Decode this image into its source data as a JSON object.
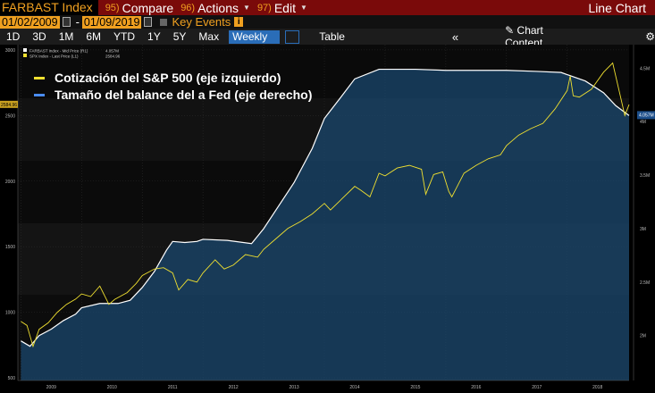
{
  "toolbar": {
    "ticker": "FARBAST Index",
    "menus": [
      {
        "num": "95)",
        "label": "Compare"
      },
      {
        "num": "96)",
        "label": "Actions"
      },
      {
        "num": "97)",
        "label": "Edit"
      }
    ],
    "chart_type": "Line Chart"
  },
  "dates": {
    "start": "01/02/2009",
    "end": "01/09/2019"
  },
  "key_events": "Key Events",
  "periods": [
    "1D",
    "3D",
    "1M",
    "6M",
    "YTD",
    "1Y",
    "5Y",
    "Max"
  ],
  "frequency": "Weekly",
  "table_label": "Table",
  "chart_content_label": "Chart Content",
  "legend_small": [
    {
      "ticker": "FARBAST Index - Mid Price (R1)",
      "value": "4.057M"
    },
    {
      "ticker": "SPX Index - Last Price (L1)",
      "value": "2584.96"
    }
  ],
  "chart_data": {
    "type": "area",
    "series": [
      {
        "name": "Cotización del S&P 500 (eje izquierdo)",
        "color": "#f0e030",
        "axis": "left",
        "x": [
          2009.0,
          2009.1,
          2009.2,
          2009.3,
          2009.45,
          2009.6,
          2009.75,
          2009.9,
          2010.0,
          2010.15,
          2010.3,
          2010.45,
          2010.55,
          2010.75,
          2010.9,
          2011.0,
          2011.2,
          2011.35,
          2011.5,
          2011.6,
          2011.75,
          2011.9,
          2012.0,
          2012.2,
          2012.35,
          2012.5,
          2012.7,
          2012.9,
          2013.0,
          2013.2,
          2013.4,
          2013.6,
          2013.8,
          2014.0,
          2014.1,
          2014.3,
          2014.5,
          2014.6,
          2014.75,
          2014.9,
          2015.0,
          2015.2,
          2015.4,
          2015.6,
          2015.67,
          2015.8,
          2015.95,
          2016.05,
          2016.1,
          2016.3,
          2016.5,
          2016.7,
          2016.9,
          2017.0,
          2017.2,
          2017.4,
          2017.6,
          2017.8,
          2018.0,
          2018.05,
          2018.1,
          2018.2,
          2018.4,
          2018.6,
          2018.75,
          2018.85,
          2018.95,
          2019.02
        ],
        "values": [
          930,
          900,
          740,
          870,
          920,
          1000,
          1060,
          1100,
          1140,
          1120,
          1200,
          1060,
          1100,
          1150,
          1220,
          1280,
          1330,
          1340,
          1300,
          1170,
          1250,
          1230,
          1300,
          1400,
          1330,
          1360,
          1440,
          1420,
          1480,
          1560,
          1640,
          1690,
          1750,
          1830,
          1780,
          1870,
          1960,
          1930,
          1880,
          2060,
          2040,
          2100,
          2120,
          2090,
          1900,
          2050,
          2070,
          1920,
          1880,
          2060,
          2120,
          2170,
          2200,
          2270,
          2350,
          2400,
          2440,
          2550,
          2690,
          2800,
          2650,
          2640,
          2700,
          2830,
          2900,
          2700,
          2500,
          2584
        ]
      },
      {
        "name": "Tamaño del balance de la Fed (eje derecho)",
        "color": "#4a8cf0",
        "axis": "right",
        "x": [
          2009.0,
          2009.15,
          2009.3,
          2009.5,
          2009.7,
          2009.9,
          2010.0,
          2010.3,
          2010.6,
          2010.8,
          2011.0,
          2011.2,
          2011.4,
          2011.5,
          2011.7,
          2011.9,
          2012.0,
          2012.4,
          2012.8,
          2013.0,
          2013.5,
          2013.8,
          2014.0,
          2014.3,
          2014.5,
          2014.9,
          2015.5,
          2016.0,
          2016.5,
          2017.0,
          2017.5,
          2017.9,
          2018.0,
          2018.3,
          2018.6,
          2018.8,
          2019.02
        ],
        "values": [
          1.95,
          1.9,
          2.0,
          2.06,
          2.14,
          2.2,
          2.26,
          2.3,
          2.3,
          2.33,
          2.45,
          2.6,
          2.8,
          2.88,
          2.87,
          2.88,
          2.9,
          2.89,
          2.86,
          3.0,
          3.43,
          3.75,
          4.03,
          4.25,
          4.4,
          4.49,
          4.49,
          4.48,
          4.48,
          4.48,
          4.47,
          4.46,
          4.44,
          4.38,
          4.27,
          4.15,
          4.057
        ]
      }
    ],
    "left_axis": {
      "ticks": [
        500,
        1000,
        1500,
        2000,
        2500,
        3000
      ],
      "range": [
        480,
        3040
      ],
      "last": "2584.96"
    },
    "right_axis": {
      "ticks": [
        "2M",
        "2.5M",
        "3M",
        "3.5M",
        "4M",
        "4.5M"
      ],
      "tick_values": [
        2.0,
        2.5,
        3.0,
        3.5,
        4.0,
        4.5
      ],
      "range": [
        1.58,
        4.72
      ],
      "last": "4.057M"
    },
    "x_axis": {
      "ticks": [
        "2009",
        "2010",
        "2011",
        "2012",
        "2013",
        "2014",
        "2015",
        "2016",
        "2017",
        "2018"
      ],
      "range": [
        2008.95,
        2019.02
      ]
    },
    "legend": [
      {
        "label": "Cotización del S&P 500 (eje izquierdo)",
        "color": "#f0e030"
      },
      {
        "label": "Tamaño del balance del a Fed (eje derecho)",
        "color": "#4a8cf0"
      }
    ]
  }
}
